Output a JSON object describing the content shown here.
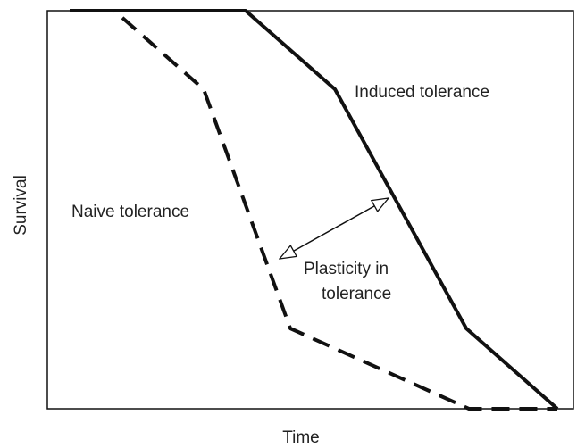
{
  "axes": {
    "x_label": "Time",
    "y_label": "Survival"
  },
  "curves": {
    "induced": "Induced tolerance",
    "naive": "Naive tolerance"
  },
  "plasticity": [
    "Plasticity in",
    "tolerance"
  ]
}
